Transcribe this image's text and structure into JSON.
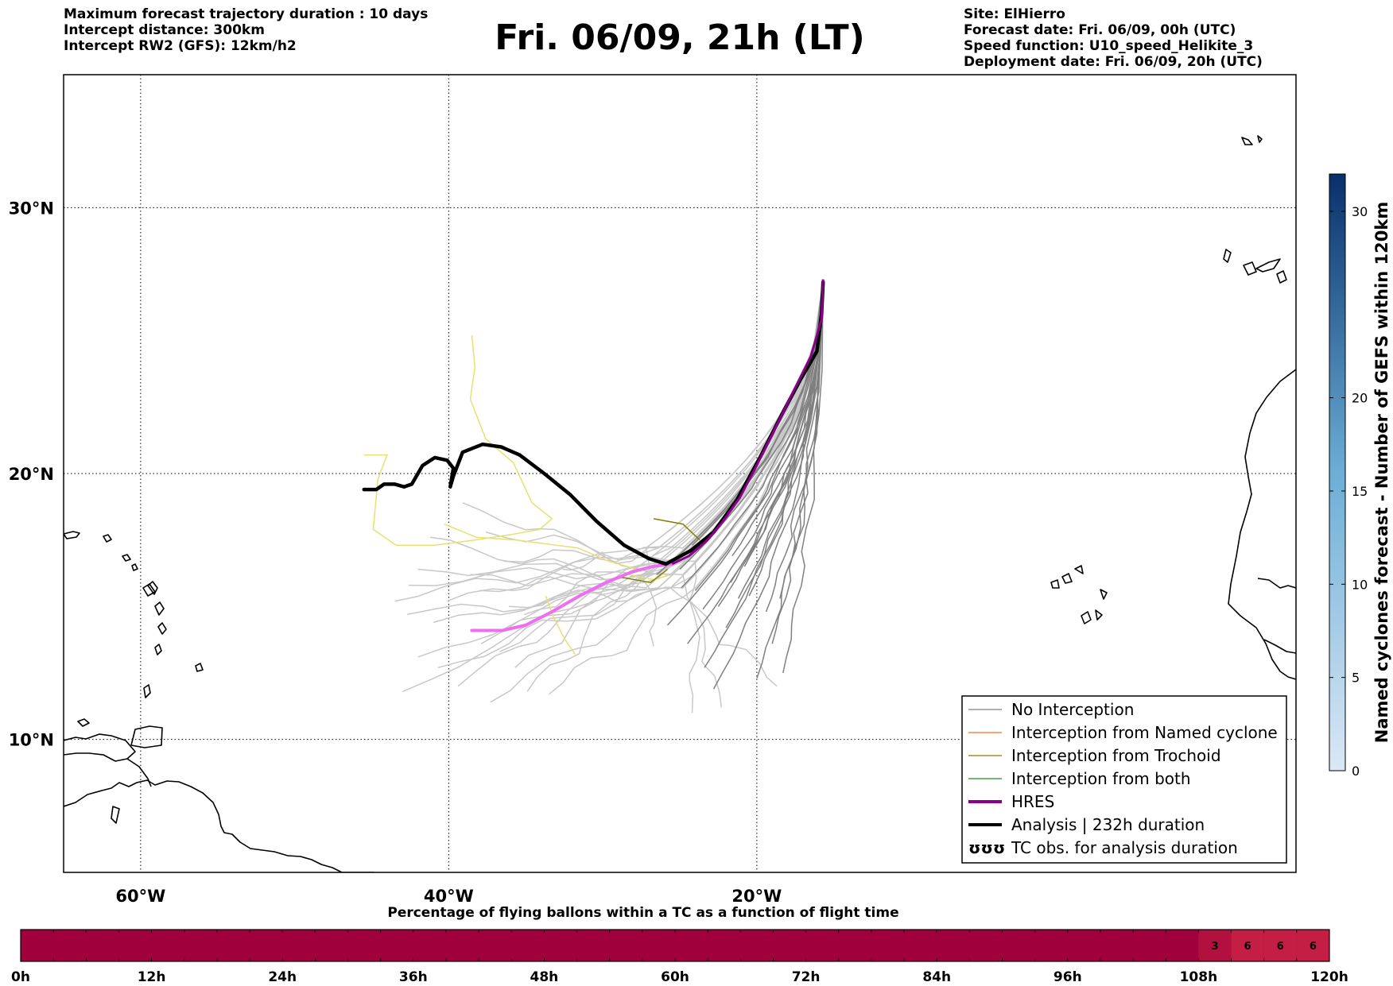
{
  "header": {
    "left": [
      "Maximum forecast trajectory duration : 10 days",
      "Intercept distance: 300km",
      "Intercept RW2 (GFS):  12km/h2"
    ],
    "title": "Fri. 06/09, 21h (LT)",
    "right": [
      "Site: ElHierro",
      "Forecast date: Fri. 06/09, 00h (UTC)",
      "Speed function: U10_speed_Helikite_3",
      "Deployment date: Fri. 06/09, 20h (UTC)"
    ]
  },
  "map": {
    "lon_range": [
      -65,
      15
    ],
    "lat_range": [
      5,
      35
    ],
    "lat_ticks": [
      {
        "v": 30,
        "label": "30°N"
      },
      {
        "v": 20,
        "label": "20°N"
      },
      {
        "v": 10,
        "label": "10°N"
      }
    ],
    "lon_ticks": [
      {
        "v": -60,
        "label": "60°W"
      },
      {
        "v": -40,
        "label": "40°W"
      },
      {
        "v": -20,
        "label": "20°W"
      }
    ],
    "grid": "dotted",
    "colors": {
      "no_interception": "#808080",
      "no_interception_light": "#c8c8c8",
      "named_cyclone": "#ff6a1a",
      "trochoid": "#808000",
      "both": "#1e8c1e",
      "hres": "#8b008b",
      "hres_pink": "#ee6ef0",
      "analysis": "#000000",
      "yellow_track": "#e8e070"
    },
    "analysis_track": [
      [
        -45.5,
        19.4
      ],
      [
        -44.7,
        19.4
      ],
      [
        -44.2,
        19.6
      ],
      [
        -43.5,
        19.6
      ],
      [
        -42.9,
        19.5
      ],
      [
        -42.4,
        19.6
      ],
      [
        -41.7,
        20.3
      ],
      [
        -40.9,
        20.6
      ],
      [
        -40.1,
        20.5
      ],
      [
        -39.7,
        20.2
      ],
      [
        -39.9,
        19.5
      ],
      [
        -39.7,
        19.9
      ],
      [
        -39.1,
        20.8
      ],
      [
        -37.8,
        21.1
      ],
      [
        -36.6,
        21.0
      ],
      [
        -35.4,
        20.7
      ],
      [
        -33.8,
        20.0
      ],
      [
        -32.1,
        19.2
      ],
      [
        -30.4,
        18.2
      ],
      [
        -28.6,
        17.3
      ],
      [
        -27.0,
        16.8
      ],
      [
        -25.9,
        16.6
      ],
      [
        -24.3,
        17.1
      ],
      [
        -22.8,
        17.8
      ],
      [
        -21.3,
        19.0
      ],
      [
        -19.8,
        20.6
      ],
      [
        -18.4,
        22.2
      ],
      [
        -17.2,
        23.5
      ],
      [
        -16.1,
        24.6
      ],
      [
        -15.8,
        26.0
      ],
      [
        -15.7,
        27.2
      ]
    ],
    "hres_track": [
      [
        -15.7,
        27.3
      ],
      [
        -15.8,
        25.8
      ],
      [
        -16.5,
        24.4
      ],
      [
        -17.7,
        23.0
      ],
      [
        -18.9,
        21.6
      ],
      [
        -20.1,
        20.2
      ],
      [
        -21.1,
        19.1
      ],
      [
        -22.2,
        18.2
      ],
      [
        -23.2,
        17.5
      ],
      [
        -24.4,
        16.9
      ],
      [
        -25.5,
        16.6
      ]
    ],
    "hres_pink_track": [
      [
        -25.5,
        16.6
      ],
      [
        -26.8,
        16.5
      ],
      [
        -28.1,
        16.3
      ],
      [
        -29.8,
        15.9
      ],
      [
        -31.5,
        15.4
      ],
      [
        -33.3,
        14.8
      ],
      [
        -35.0,
        14.3
      ],
      [
        -36.5,
        14.1
      ],
      [
        -38.5,
        14.1
      ]
    ],
    "yellow_tracks": [
      [
        [
          -38.5,
          25.2
        ],
        [
          -38.3,
          24.0
        ],
        [
          -38.6,
          22.8
        ],
        [
          -37.6,
          21.3
        ],
        [
          -35.8,
          20.4
        ],
        [
          -34.6,
          18.9
        ],
        [
          -33.3,
          18.3
        ],
        [
          -34.1,
          17.9
        ],
        [
          -36.0,
          17.7
        ],
        [
          -38.3,
          17.5
        ],
        [
          -41.0,
          17.3
        ],
        [
          -43.4,
          17.3
        ],
        [
          -44.9,
          17.9
        ],
        [
          -44.6,
          19.8
        ],
        [
          -44.0,
          20.7
        ],
        [
          -45.5,
          20.7
        ]
      ],
      [
        [
          -40.3,
          18.1
        ],
        [
          -38.2,
          17.6
        ],
        [
          -35.6,
          17.5
        ],
        [
          -31.6,
          17.2
        ],
        [
          -29.6,
          16.7
        ],
        [
          -27.8,
          16.4
        ]
      ],
      [
        [
          -33.7,
          15.4
        ],
        [
          -33.2,
          14.6
        ],
        [
          -32.5,
          13.8
        ],
        [
          -31.8,
          13.2
        ]
      ],
      [
        [
          -28.3,
          16.2
        ],
        [
          -26.6,
          16.0
        ],
        [
          -25.7,
          16.2
        ]
      ]
    ],
    "olive_tracks": [
      [
        [
          -26.7,
          18.3
        ],
        [
          -24.8,
          18.1
        ],
        [
          -23.7,
          17.5
        ]
      ],
      [
        [
          -28.8,
          16.1
        ],
        [
          -26.9,
          15.9
        ],
        [
          -25.8,
          16.4
        ]
      ]
    ],
    "gray_track_ends": [
      [
        -22.8,
        11.9
      ],
      [
        -23.4,
        12.7
      ],
      [
        -24.5,
        13.6
      ],
      [
        -25.8,
        14.3
      ],
      [
        -24.0,
        15.6
      ],
      [
        -21.6,
        16.9
      ],
      [
        -21.2,
        15.3
      ],
      [
        -20.5,
        15.4
      ],
      [
        -24.2,
        17.3
      ],
      [
        -23.5,
        14.9
      ],
      [
        -19.0,
        13.6
      ],
      [
        -18.3,
        12.5
      ],
      [
        -20.0,
        12.3
      ],
      [
        -25.0,
        16.4
      ],
      [
        -22.0,
        14.2
      ],
      [
        -21.7,
        15.9
      ],
      [
        -26.5,
        16.2
      ],
      [
        -20.8,
        16.5
      ],
      [
        -19.4,
        14.8
      ],
      [
        -24.9,
        15.7
      ],
      [
        -22.5,
        15.0
      ],
      [
        -18.5,
        15.3
      ]
    ],
    "light_track_ends": [
      [
        -43.0,
        11.8
      ],
      [
        -42.0,
        13.1
      ],
      [
        -41.0,
        14.4
      ],
      [
        -42.7,
        14.7
      ],
      [
        -43.5,
        15.2
      ],
      [
        -42.6,
        15.8
      ],
      [
        -42.0,
        16.4
      ],
      [
        -38.6,
        16.2
      ],
      [
        -40.1,
        15.2
      ],
      [
        -39.4,
        12.0
      ],
      [
        -37.3,
        11.4
      ],
      [
        -36.1,
        15.0
      ],
      [
        -35.1,
        14.7
      ],
      [
        -35.7,
        12.7
      ],
      [
        -34.9,
        11.8
      ],
      [
        -33.5,
        11.7
      ],
      [
        -36.4,
        16.7
      ],
      [
        -37.6,
        17.8
      ],
      [
        -39.1,
        18.9
      ],
      [
        -41.2,
        17.6
      ],
      [
        -37.9,
        13.6
      ],
      [
        -36.7,
        13.3
      ],
      [
        -38.0,
        15.6
      ],
      [
        -40.7,
        12.7
      ],
      [
        -26.7,
        13.5
      ],
      [
        -24.2,
        11.0
      ],
      [
        -22.3,
        11.2
      ],
      [
        -18.7,
        12.0
      ],
      [
        -32.6,
        16.4
      ]
    ],
    "tc_marks": [],
    "legend": [
      {
        "label": "No Interception",
        "color": "#808080",
        "width": 1.2,
        "kind": "line"
      },
      {
        "label": "Interception from Named cyclone",
        "color": "#ff6a1a",
        "width": 1.2,
        "kind": "line"
      },
      {
        "label": "Interception from Trochoid",
        "color": "#808000",
        "width": 1.2,
        "kind": "line"
      },
      {
        "label": "Interception from both",
        "color": "#1e8c1e",
        "width": 1.2,
        "kind": "line"
      },
      {
        "label": "HRES",
        "color": "#8b008b",
        "width": 4,
        "kind": "line"
      },
      {
        "label": "Analysis | 232h duration",
        "color": "#000000",
        "width": 4,
        "kind": "line"
      },
      {
        "label": "TC obs. for analysis duration",
        "color": "#000000",
        "width": 0,
        "kind": "glyph",
        "glyph": "ʊʊʊ"
      }
    ]
  },
  "colorbar": {
    "label": "Named cyclones forecast - Number of GEFS within 120km",
    "min": 0,
    "max": 32,
    "ticks": [
      0,
      5,
      10,
      15,
      20,
      30
    ],
    "color_low": "#dbe8f6",
    "color_mid": "#6baed6",
    "color_high": "#08306b"
  },
  "timeline": {
    "title": "Percentage of flying ballons within a TC as a function of flight time",
    "hours_max": 120,
    "ticks": [
      "0h",
      "12h",
      "24h",
      "36h",
      "48h",
      "60h",
      "72h",
      "84h",
      "96h",
      "108h",
      "120h"
    ],
    "base_color": "#a0003c",
    "cells": [
      {
        "start": 108,
        "end": 111,
        "value": "3",
        "color": "#b2103e"
      },
      {
        "start": 111,
        "end": 114,
        "value": "6",
        "color": "#c41e45"
      },
      {
        "start": 114,
        "end": 117,
        "value": "6",
        "color": "#c41e45"
      },
      {
        "start": 117,
        "end": 120,
        "value": "6",
        "color": "#c41e45"
      }
    ]
  }
}
